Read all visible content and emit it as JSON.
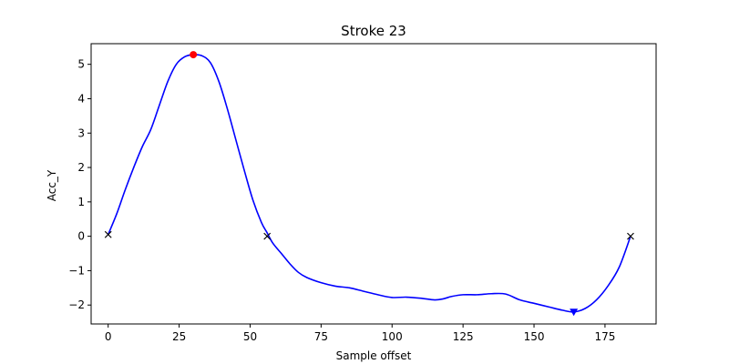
{
  "chart_data": {
    "type": "line",
    "title": "Stroke 23",
    "xlabel": "Sample offset",
    "ylabel": "Acc_Y",
    "xlim": [
      -6,
      193
    ],
    "ylim": [
      -2.55,
      5.6
    ],
    "xticks": [
      0,
      25,
      50,
      75,
      100,
      125,
      150,
      175
    ],
    "yticks": [
      -2,
      -1,
      0,
      1,
      2,
      3,
      4,
      5
    ],
    "grid": false,
    "line_color": "#0000ff",
    "series": [
      {
        "x": [
          0,
          3,
          6,
          9,
          12,
          15,
          18,
          21,
          24,
          27,
          30,
          33,
          36,
          39,
          42,
          45,
          48,
          51,
          54,
          56,
          58,
          61,
          64,
          67,
          70,
          75,
          80,
          85,
          90,
          95,
          100,
          105,
          110,
          115,
          118,
          121,
          125,
          130,
          135,
          140,
          145,
          150,
          155,
          160,
          164,
          168,
          172,
          176,
          180,
          184
        ],
        "y": [
          0.05,
          0.65,
          1.35,
          2.0,
          2.6,
          3.1,
          3.8,
          4.5,
          5.0,
          5.22,
          5.28,
          5.25,
          5.05,
          4.5,
          3.7,
          2.8,
          1.9,
          1.05,
          0.4,
          0.1,
          -0.2,
          -0.5,
          -0.8,
          -1.05,
          -1.2,
          -1.35,
          -1.45,
          -1.5,
          -1.6,
          -1.7,
          -1.78,
          -1.77,
          -1.8,
          -1.85,
          -1.82,
          -1.75,
          -1.7,
          -1.7,
          -1.67,
          -1.68,
          -1.85,
          -1.95,
          -2.05,
          -2.15,
          -2.2,
          -2.1,
          -1.85,
          -1.45,
          -0.9,
          0.0
        ]
      }
    ],
    "markers": [
      {
        "x": 0,
        "y": 0.05,
        "symbol": "x",
        "color": "#000000"
      },
      {
        "x": 56,
        "y": 0.0,
        "symbol": "x",
        "color": "#000000"
      },
      {
        "x": 184,
        "y": 0.0,
        "symbol": "x",
        "color": "#000000"
      },
      {
        "x": 30,
        "y": 5.28,
        "symbol": "circle",
        "color": "#ff0000"
      },
      {
        "x": 164,
        "y": -2.2,
        "symbol": "triangle-down",
        "color": "#0000ff"
      }
    ]
  }
}
